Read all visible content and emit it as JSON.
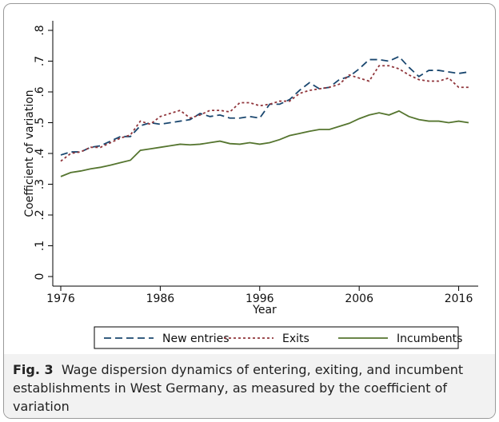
{
  "chart_data": {
    "type": "line",
    "x_label": "Year",
    "y_label": "Coefficient of variation",
    "x": [
      1976,
      1977,
      1978,
      1979,
      1980,
      1981,
      1982,
      1983,
      1984,
      1985,
      1986,
      1987,
      1988,
      1989,
      1990,
      1991,
      1992,
      1993,
      1994,
      1995,
      1996,
      1997,
      1998,
      1999,
      2000,
      2001,
      2002,
      2003,
      2004,
      2005,
      2006,
      2007,
      2008,
      2009,
      2010,
      2011,
      2012,
      2013,
      2014,
      2015,
      2016,
      2017
    ],
    "series": [
      {
        "name": "New entries",
        "color": "#1a476f",
        "dash": "dash",
        "values": [
          0.395,
          0.405,
          0.405,
          0.42,
          0.425,
          0.44,
          0.455,
          0.455,
          0.49,
          0.5,
          0.495,
          0.5,
          0.505,
          0.51,
          0.53,
          0.52,
          0.525,
          0.515,
          0.515,
          0.52,
          0.515,
          0.56,
          0.56,
          0.575,
          0.605,
          0.63,
          0.61,
          0.615,
          0.64,
          0.65,
          0.675,
          0.705,
          0.705,
          0.7,
          0.715,
          0.68,
          0.65,
          0.67,
          0.67,
          0.665,
          0.66,
          0.665
        ]
      },
      {
        "name": "Exits",
        "color": "#90353b",
        "dash": "dot",
        "values": [
          0.375,
          0.4,
          0.405,
          0.42,
          0.42,
          0.435,
          0.45,
          0.46,
          0.505,
          0.495,
          0.52,
          0.53,
          0.54,
          0.515,
          0.525,
          0.54,
          0.54,
          0.535,
          0.565,
          0.565,
          0.555,
          0.56,
          0.57,
          0.57,
          0.595,
          0.605,
          0.61,
          0.615,
          0.625,
          0.655,
          0.645,
          0.635,
          0.685,
          0.685,
          0.675,
          0.655,
          0.64,
          0.635,
          0.635,
          0.645,
          0.615,
          0.615
        ]
      },
      {
        "name": "Incumbents",
        "color": "#55752f",
        "dash": "solid",
        "values": [
          0.325,
          0.338,
          0.343,
          0.35,
          0.355,
          0.362,
          0.37,
          0.378,
          0.41,
          0.415,
          0.42,
          0.425,
          0.43,
          0.428,
          0.43,
          0.435,
          0.44,
          0.432,
          0.43,
          0.435,
          0.43,
          0.435,
          0.445,
          0.458,
          0.465,
          0.472,
          0.478,
          0.478,
          0.488,
          0.498,
          0.513,
          0.525,
          0.532,
          0.525,
          0.538,
          0.52,
          0.51,
          0.505,
          0.505,
          0.5,
          0.505,
          0.5
        ]
      }
    ],
    "xlim": [
      1976,
      2017
    ],
    "xticks": [
      1976,
      1986,
      1996,
      2006,
      2016
    ],
    "ylim": [
      0,
      0.8
    ],
    "yticks": [
      0,
      {
        "value": 0.1,
        "label": ".1"
      },
      {
        "value": 0.2,
        "label": ".2"
      },
      {
        "value": 0.3,
        "label": ".3"
      },
      {
        "value": 0.4,
        "label": ".4"
      },
      {
        "value": 0.5,
        "label": ".5"
      },
      {
        "value": 0.6,
        "label": ".6"
      },
      {
        "value": 0.7,
        "label": ".7"
      },
      {
        "value": 0.8,
        "label": ".8"
      }
    ],
    "legend": "bottom"
  },
  "caption": {
    "label": "Fig. 3",
    "text": "Wage dispersion dynamics of entering, exiting, and incumbent establishments in West Germany, as measured by the coefficient of variation"
  }
}
